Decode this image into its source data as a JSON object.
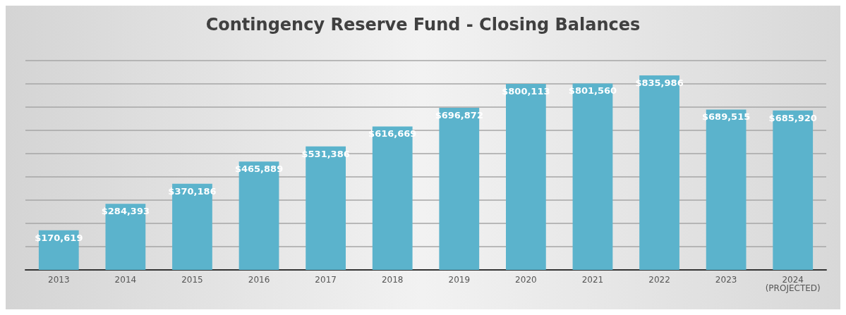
{
  "chart_data": {
    "type": "bar",
    "title": "Contingency Reserve Fund - Closing Balances",
    "categories": [
      "2013",
      "2014",
      "2015",
      "2016",
      "2017",
      "2018",
      "2019",
      "2020",
      "2021",
      "2022",
      "2023",
      "2024\n(PROJECTED)"
    ],
    "values": [
      170619,
      284393,
      370186,
      465889,
      531386,
      616669,
      696872,
      800113,
      801560,
      835986,
      689515,
      685920
    ],
    "value_labels": [
      "$170,619",
      "$284,393",
      "$370,186",
      "$465,889",
      "$531,386",
      "$616,669",
      "$696,872",
      "$800,113",
      "$801,560",
      "$835,986",
      "$689,515",
      "$685,920"
    ],
    "color": "#5bb3cc",
    "tick_labels": "x",
    "grid": "y"
  }
}
